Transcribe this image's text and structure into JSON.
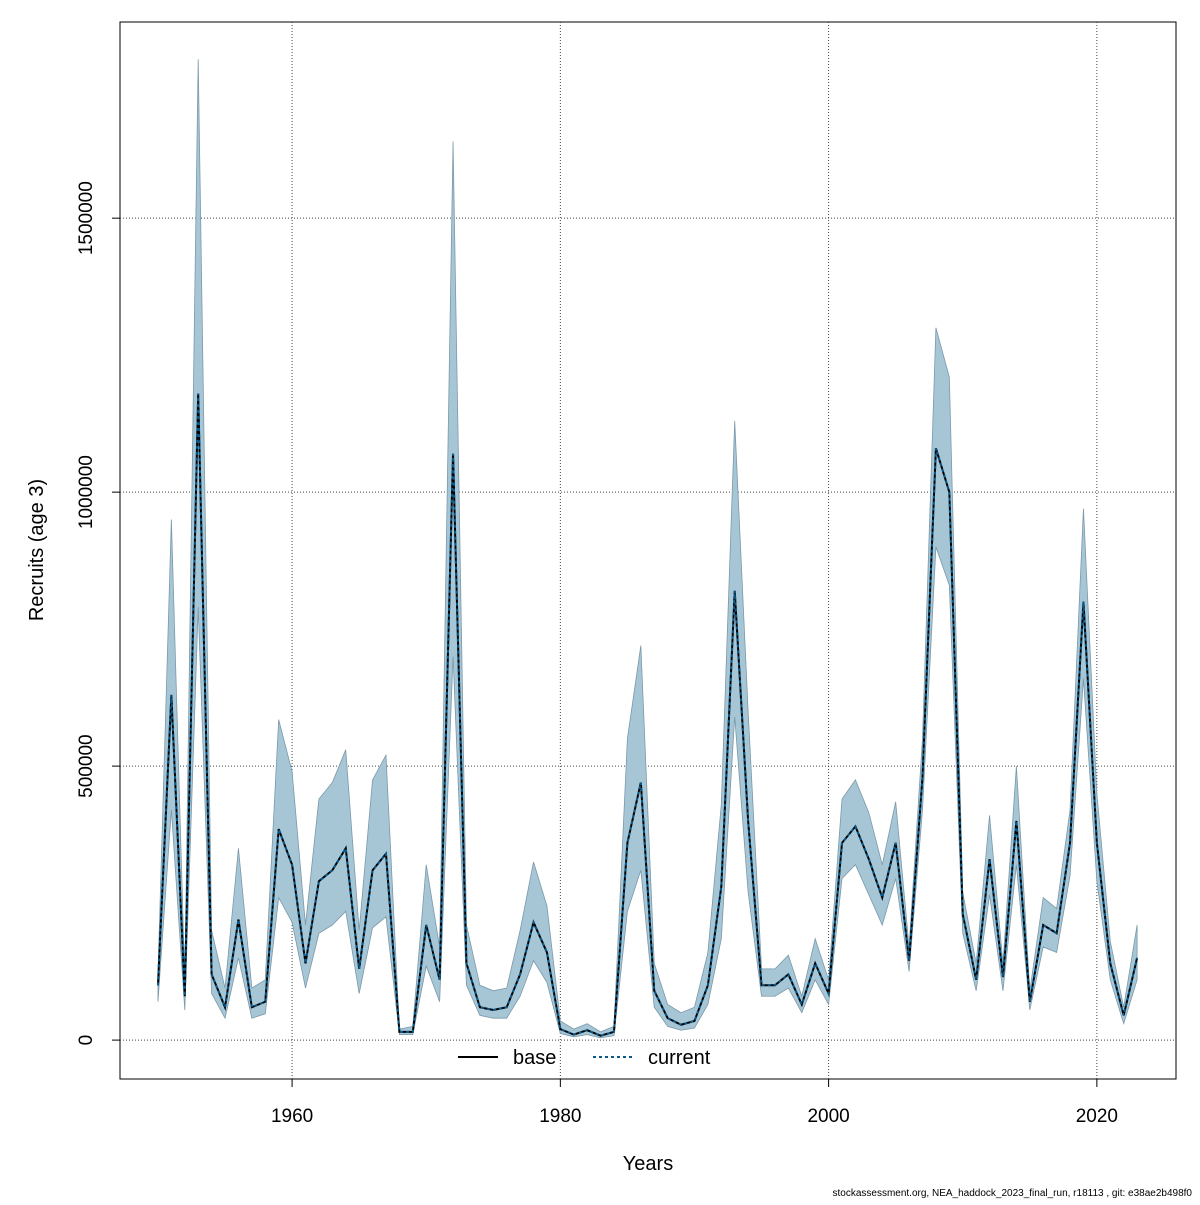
{
  "chart_data": {
    "type": "line",
    "x_label": "Years",
    "y_label": "Recruits (age 3)",
    "footer": "stockassessment.org, NEA_haddock_2023_final_run, r18113 , git: e38ae2b498f0",
    "x": [
      1950,
      1951,
      1952,
      1953,
      1954,
      1955,
      1956,
      1957,
      1958,
      1959,
      1960,
      1961,
      1962,
      1963,
      1964,
      1965,
      1966,
      1967,
      1968,
      1969,
      1970,
      1971,
      1972,
      1973,
      1974,
      1975,
      1976,
      1977,
      1978,
      1979,
      1980,
      1981,
      1982,
      1983,
      1984,
      1985,
      1986,
      1987,
      1988,
      1989,
      1990,
      1991,
      1992,
      1993,
      1994,
      1995,
      1996,
      1997,
      1998,
      1999,
      2000,
      2001,
      2002,
      2003,
      2004,
      2005,
      2006,
      2007,
      2008,
      2009,
      2010,
      2011,
      2012,
      2013,
      2014,
      2015,
      2016,
      2017,
      2018,
      2019,
      2020,
      2021,
      2022,
      2023
    ],
    "series": [
      {
        "name": "base",
        "color": "#000000",
        "dash": "solid",
        "values": [
          100000,
          630000,
          80000,
          1180000,
          120000,
          60000,
          220000,
          60000,
          70000,
          385000,
          320000,
          140000,
          290000,
          310000,
          350000,
          130000,
          310000,
          340000,
          15000,
          15000,
          210000,
          110000,
          1070000,
          140000,
          60000,
          55000,
          60000,
          120000,
          215000,
          160000,
          20000,
          10000,
          18000,
          8000,
          15000,
          360000,
          470000,
          90000,
          40000,
          28000,
          35000,
          100000,
          280000,
          820000,
          400000,
          100000,
          100000,
          120000,
          65000,
          140000,
          85000,
          360000,
          390000,
          330000,
          260000,
          360000,
          145000,
          480000,
          1080000,
          1000000,
          230000,
          110000,
          330000,
          115000,
          400000,
          70000,
          210000,
          195000,
          360000,
          800000,
          360000,
          140000,
          45000,
          150000
        ]
      },
      {
        "name": "current",
        "color": "#0a5a8c",
        "dash": "dotted",
        "values": [
          100000,
          630000,
          80000,
          1180000,
          120000,
          60000,
          220000,
          60000,
          70000,
          385000,
          320000,
          140000,
          290000,
          310000,
          350000,
          130000,
          310000,
          340000,
          15000,
          15000,
          210000,
          110000,
          1070000,
          140000,
          60000,
          55000,
          60000,
          120000,
          215000,
          160000,
          20000,
          10000,
          18000,
          8000,
          15000,
          360000,
          470000,
          90000,
          40000,
          28000,
          35000,
          100000,
          280000,
          820000,
          400000,
          100000,
          100000,
          120000,
          65000,
          140000,
          85000,
          360000,
          390000,
          330000,
          260000,
          360000,
          145000,
          480000,
          1080000,
          1000000,
          230000,
          110000,
          330000,
          115000,
          400000,
          70000,
          210000,
          195000,
          360000,
          800000,
          360000,
          140000,
          45000,
          150000
        ]
      }
    ],
    "band": {
      "color": "#a6c6d6",
      "lower": [
        70000,
        420000,
        55000,
        790000,
        85000,
        40000,
        150000,
        40000,
        48000,
        260000,
        215000,
        95000,
        195000,
        210000,
        235000,
        85000,
        205000,
        225000,
        10000,
        10000,
        135000,
        70000,
        700000,
        100000,
        45000,
        40000,
        40000,
        80000,
        145000,
        105000,
        12000,
        6000,
        10000,
        4000,
        8000,
        235000,
        310000,
        60000,
        25000,
        18000,
        22000,
        65000,
        185000,
        590000,
        270000,
        80000,
        80000,
        95000,
        50000,
        110000,
        65000,
        295000,
        320000,
        265000,
        210000,
        295000,
        125000,
        420000,
        900000,
        830000,
        195000,
        90000,
        265000,
        90000,
        320000,
        55000,
        170000,
        160000,
        300000,
        660000,
        290000,
        110000,
        30000,
        110000
      ],
      "upper": [
        120000,
        950000,
        110000,
        1790000,
        200000,
        95000,
        350000,
        95000,
        110000,
        585000,
        490000,
        210000,
        440000,
        470000,
        530000,
        200000,
        475000,
        520000,
        20000,
        25000,
        320000,
        170000,
        1640000,
        210000,
        100000,
        90000,
        95000,
        200000,
        325000,
        245000,
        35000,
        20000,
        30000,
        15000,
        25000,
        550000,
        720000,
        140000,
        65000,
        50000,
        60000,
        160000,
        430000,
        1130000,
        600000,
        130000,
        130000,
        155000,
        80000,
        185000,
        110000,
        440000,
        475000,
        415000,
        320000,
        435000,
        170000,
        550000,
        1300000,
        1210000,
        270000,
        140000,
        410000,
        140000,
        500000,
        90000,
        260000,
        240000,
        420000,
        970000,
        450000,
        180000,
        60000,
        210000
      ]
    },
    "xlim": [
      1947.17,
      2025.9
    ],
    "ylim": [
      -71000,
      1858000
    ],
    "xticks": [
      1960,
      1980,
      2000,
      2020
    ],
    "yticks": [
      0,
      500000,
      1000000,
      1500000
    ],
    "grid": true,
    "legend": "bottom"
  }
}
